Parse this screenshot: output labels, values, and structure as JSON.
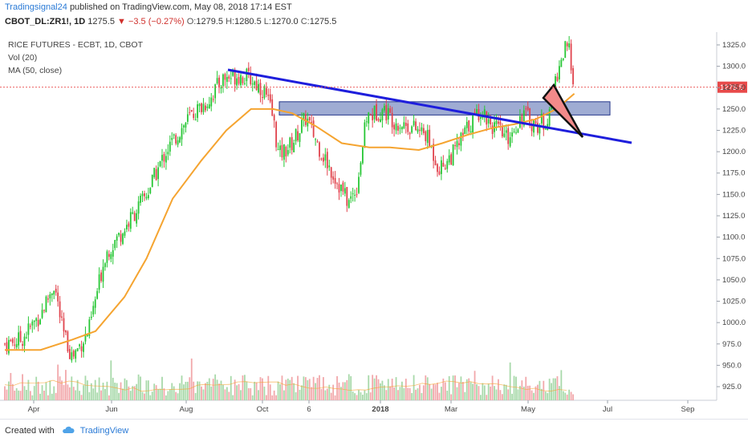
{
  "header": {
    "publisher": "Tradingsignal24",
    "published_text": "published on TradingView.com, May 08, 2018 17:14 EST",
    "symbol": "CBOT_DL:ZR1!, 1D",
    "last": "1275.5",
    "change": "▼ −3.5 (−0.27%)",
    "o_label": "O:",
    "o": "1279.5",
    "h_label": "H:",
    "h": "1280.5",
    "l_label": "L:",
    "l": "1270.0",
    "c_label": "C:",
    "c": "1275.5"
  },
  "legend": {
    "title": "RICE FUTURES - ECBT, 1D, CBOT",
    "vol": "Vol (20)",
    "ma": "MA (50, close)"
  },
  "footer": {
    "created_with": "Created with",
    "brand": "TradingView"
  },
  "colors": {
    "up": "#26c634",
    "down": "#e0434c",
    "ma": "#f5a430",
    "trendline": "#1e1edc",
    "zone_fill": "#7f90c4",
    "triangle_fill": "#f28a8a",
    "price_tag": "#e84a4a",
    "vol_up": "#a8d9aa",
    "vol_down": "#f2a8ab"
  },
  "chart_data": {
    "type": "candlestick",
    "title": "RICE FUTURES - ECBT, 1D, CBOT",
    "yaxis_ticks": [
      925,
      950,
      975,
      1000,
      1025,
      1050,
      1075,
      1100,
      1125,
      1150,
      1175,
      1200,
      1225,
      1250,
      1275,
      1300,
      1325
    ],
    "ylim": [
      910,
      1340
    ],
    "xaxis_ticks": [
      "Apr",
      "Jun",
      "Aug",
      "Oct",
      "6",
      "2018",
      "Mar",
      "May",
      "Jul",
      "Sep"
    ],
    "last_price": "1275.5",
    "close_path": [
      [
        "2017-03-20",
        975
      ],
      [
        "2017-04-01",
        980
      ],
      [
        "2017-04-15",
        1010
      ],
      [
        "2017-04-25",
        1045
      ],
      [
        "2017-05-01",
        990
      ],
      [
        "2017-05-08",
        960
      ],
      [
        "2017-05-20",
        990
      ],
      [
        "2017-06-01",
        1080
      ],
      [
        "2017-06-15",
        1110
      ],
      [
        "2017-07-01",
        1150
      ],
      [
        "2017-07-15",
        1200
      ],
      [
        "2017-08-01",
        1240
      ],
      [
        "2017-08-15",
        1260
      ],
      [
        "2017-08-25",
        1285
      ],
      [
        "2017-09-05",
        1290
      ],
      [
        "2017-09-15",
        1285
      ],
      [
        "2017-09-25",
        1270
      ],
      [
        "2017-10-01",
        1240
      ],
      [
        "2017-10-05",
        1195
      ],
      [
        "2017-10-15",
        1210
      ],
      [
        "2017-10-25",
        1240
      ],
      [
        "2017-11-05",
        1200
      ],
      [
        "2017-11-15",
        1170
      ],
      [
        "2017-11-25",
        1140
      ],
      [
        "2017-12-01",
        1160
      ],
      [
        "2017-12-08",
        1240
      ],
      [
        "2017-12-20",
        1250
      ],
      [
        "2017-12-29",
        1235
      ],
      [
        "2018-01-08",
        1230
      ],
      [
        "2018-01-20",
        1220
      ],
      [
        "2018-01-30",
        1180
      ],
      [
        "2018-02-10",
        1200
      ],
      [
        "2018-02-20",
        1230
      ],
      [
        "2018-03-01",
        1250
      ],
      [
        "2018-03-10",
        1230
      ],
      [
        "2018-03-20",
        1215
      ],
      [
        "2018-04-01",
        1245
      ],
      [
        "2018-04-10",
        1230
      ],
      [
        "2018-04-20",
        1240
      ],
      [
        "2018-04-25",
        1290
      ],
      [
        "2018-05-01",
        1320
      ],
      [
        "2018-05-05",
        1315
      ],
      [
        "2018-05-08",
        1275.5
      ]
    ],
    "ma_path": [
      [
        "2017-03-20",
        968
      ],
      [
        "2017-04-15",
        968
      ],
      [
        "2017-05-08",
        980
      ],
      [
        "2017-05-25",
        990
      ],
      [
        "2017-06-15",
        1030
      ],
      [
        "2017-07-01",
        1075
      ],
      [
        "2017-07-20",
        1145
      ],
      [
        "2017-08-10",
        1190
      ],
      [
        "2017-08-28",
        1225
      ],
      [
        "2017-09-15",
        1250
      ],
      [
        "2017-10-01",
        1250
      ],
      [
        "2017-10-15",
        1245
      ],
      [
        "2017-11-01",
        1230
      ],
      [
        "2017-11-20",
        1210
      ],
      [
        "2017-12-10",
        1205
      ],
      [
        "2017-12-25",
        1205
      ],
      [
        "2018-01-15",
        1202
      ],
      [
        "2018-02-01",
        1210
      ],
      [
        "2018-02-20",
        1220
      ],
      [
        "2018-03-10",
        1228
      ],
      [
        "2018-03-25",
        1232
      ],
      [
        "2018-04-10",
        1238
      ],
      [
        "2018-04-25",
        1250
      ],
      [
        "2018-05-08",
        1268
      ]
    ],
    "annotations": {
      "trendline": [
        [
          "2017-08-28",
          1305
        ],
        [
          "2018-07-05",
          1220
        ]
      ],
      "zone": {
        "from": "2017-10-10",
        "to": "2018-06-10",
        "low": 1250,
        "high": 1258
      },
      "triangle": [
        [
          "2018-05-08",
          1278
        ],
        [
          "2018-05-16",
          1294
        ],
        [
          "2018-06-08",
          1226
        ]
      ]
    }
  }
}
